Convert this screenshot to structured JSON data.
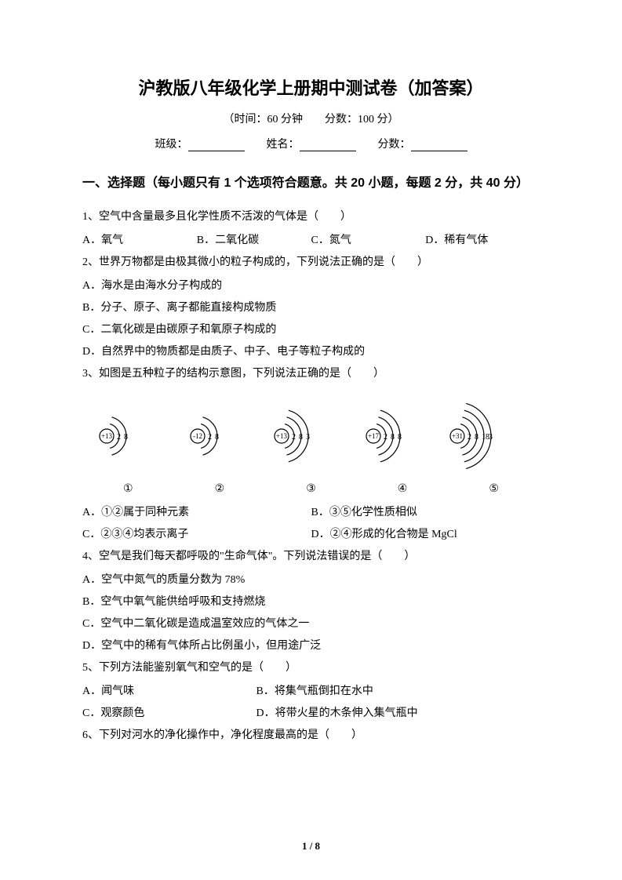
{
  "title": "沪教版八年级化学上册期中测试卷（加答案）",
  "subtitle": "（时间：60 分钟　　分数：100 分）",
  "info": {
    "class_label": "班级：",
    "name_label": "姓名：",
    "score_label": "分数："
  },
  "section1": "一、选择题（每小题只有 1 个选项符合题意。共 20 小题，每题 2 分，共 40 分）",
  "q1": {
    "text": "1、空气中含量最多且化学性质不活泼的气体是（　　）",
    "a": "A．氧气",
    "b": "B．二氧化碳",
    "c": "C．氮气",
    "d": "D．稀有气体"
  },
  "q2": {
    "text": "2、世界万物都是由极其微小的粒子构成的，下列说法正确的是（　　）",
    "a": "A．海水是由海水分子构成的",
    "b": "B．分子、原子、离子都能直接构成物质",
    "c": "C．二氧化碳是由碳原子和氧原子构成的",
    "d": "D．自然界中的物质都是由质子、中子、电子等粒子构成的"
  },
  "q3": {
    "text": "3、如图是五种粒子的结构示意图，下列说法正确的是（　　）",
    "diagrams": [
      {
        "nucleus": "+13",
        "shells": [
          "2",
          "8"
        ],
        "label": "①"
      },
      {
        "nucleus": "-12",
        "shells": [
          "2",
          "8"
        ],
        "label": "②"
      },
      {
        "nucleus": "+13",
        "shells": [
          "2",
          "8",
          "3"
        ],
        "label": "③"
      },
      {
        "nucleus": "+17",
        "shells": [
          "2",
          "8",
          "8"
        ],
        "label": "④"
      },
      {
        "nucleus": "+31",
        "shells": [
          "2",
          "8",
          "18",
          "3"
        ],
        "label": "⑤"
      }
    ],
    "a": "A．①②属于同种元素",
    "b": "B．③⑤化学性质相似",
    "c": "C．②③④均表示离子",
    "d": "D．②④形成的化合物是 MgCl"
  },
  "q4": {
    "text": "4、空气是我们每天都呼吸的\"生命气体\"。下列说法错误的是（　　）",
    "a": "A．空气中氮气的质量分数为 78%",
    "b": "B．空气中氧气能供给呼吸和支持燃烧",
    "c": "C．空气中二氧化碳是造成温室效应的气体之一",
    "d": "D．空气中的稀有气体所占比例虽小，但用途广泛"
  },
  "q5": {
    "text": "5、下列方法能鉴别氧气和空气的是（　　）",
    "a": "A．闻气味",
    "b": "B．将集气瓶倒扣在水中",
    "c": "C．观察颜色",
    "d": "D．将带火星的木条伸入集气瓶中"
  },
  "q6": {
    "text": "6、下列对河水的净化操作中，净化程度最高的是（　　）"
  },
  "pagenum": "1 / 8",
  "colors": {
    "text": "#000000",
    "bg": "#ffffff"
  },
  "atom_style": {
    "nucleus_radius": 9,
    "arc_stroke": "#000000",
    "arc_width": 1.2,
    "font_size": 10
  }
}
